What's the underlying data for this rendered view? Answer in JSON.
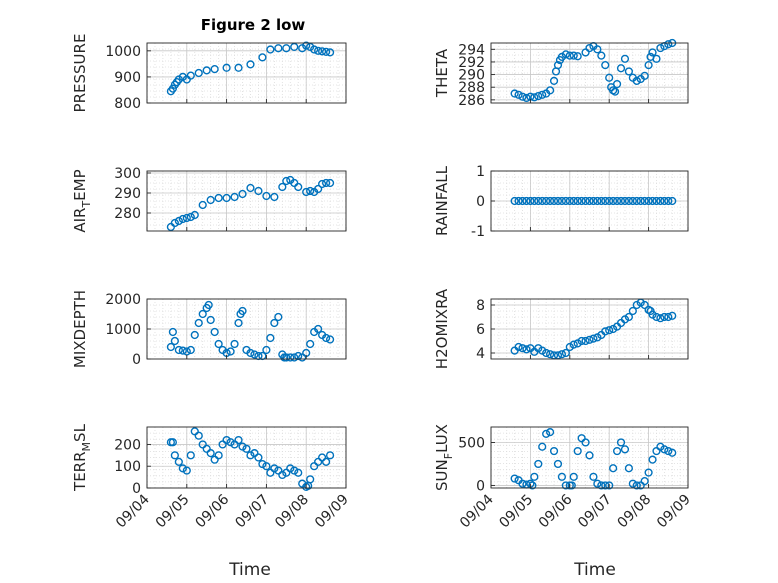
{
  "figure": {
    "title": "Figure 2 low",
    "xlabel": "Time",
    "x_ticks": [
      "09/04",
      "09/05",
      "09/06",
      "09/07",
      "09/08",
      "09/09"
    ],
    "marker_color": "#0072BD",
    "grid": "minor dotted"
  },
  "chart_data": [
    {
      "type": "scatter",
      "ylabel": "PRESSURE",
      "ylim": [
        800,
        1030
      ],
      "yticks": [
        "800",
        "900",
        "1000"
      ],
      "ytick_values": [
        800,
        900,
        1000
      ],
      "ylabel_parts": [],
      "x": [
        0.6,
        0.65,
        0.7,
        0.75,
        0.8,
        0.9,
        1.0,
        1.1,
        1.3,
        1.5,
        1.7,
        2.0,
        2.3,
        2.6,
        2.9,
        3.1,
        3.3,
        3.5,
        3.7,
        3.9,
        4.0,
        4.1,
        4.2,
        4.3,
        4.4,
        4.5,
        4.6
      ],
      "y": [
        845,
        855,
        870,
        880,
        890,
        900,
        890,
        905,
        915,
        925,
        930,
        935,
        935,
        948,
        975,
        1005,
        1010,
        1010,
        1015,
        1010,
        1020,
        1015,
        1005,
        1000,
        998,
        996,
        994
      ]
    },
    {
      "type": "scatter",
      "ylabel": "THETA",
      "ylim": [
        285.5,
        295
      ],
      "yticks": [
        "286",
        "288",
        "290",
        "292",
        "294"
      ],
      "ytick_values": [
        286,
        288,
        290,
        292,
        294
      ],
      "ylabel_parts": [],
      "x": [
        0.6,
        0.7,
        0.8,
        0.9,
        1.0,
        1.1,
        1.2,
        1.3,
        1.4,
        1.5,
        1.6,
        1.65,
        1.7,
        1.75,
        1.8,
        1.9,
        2.0,
        2.1,
        2.2,
        2.4,
        2.5,
        2.6,
        2.7,
        2.8,
        2.9,
        3.0,
        3.05,
        3.1,
        3.15,
        3.2,
        3.3,
        3.4,
        3.5,
        3.6,
        3.7,
        3.8,
        3.9,
        4.0,
        4.05,
        4.1,
        4.2,
        4.3,
        4.4,
        4.5,
        4.6
      ],
      "y": [
        287,
        286.8,
        286.5,
        286.3,
        286.5,
        286.4,
        286.6,
        286.8,
        287,
        287.5,
        289,
        290.5,
        291.5,
        292.3,
        292.8,
        293.2,
        293,
        293,
        292.9,
        293.5,
        294.2,
        294.5,
        294,
        293,
        291.5,
        289.5,
        288,
        287.5,
        287.3,
        288.5,
        291,
        292.5,
        290.5,
        289.5,
        289,
        289.3,
        289.8,
        291.5,
        292.8,
        293.5,
        292.5,
        294.2,
        294.5,
        294.8,
        295
      ]
    },
    {
      "type": "scatter",
      "ylabel": "AIR_TEMP",
      "ylabel_parts": [
        "AIR",
        "T",
        "EMP"
      ],
      "ylim": [
        271,
        301
      ],
      "yticks": [
        "280",
        "290",
        "300"
      ],
      "ytick_values": [
        280,
        290,
        300
      ],
      "x": [
        0.6,
        0.7,
        0.8,
        0.9,
        1.0,
        1.1,
        1.2,
        1.4,
        1.6,
        1.8,
        2.0,
        2.2,
        2.4,
        2.6,
        2.8,
        3.0,
        3.2,
        3.4,
        3.5,
        3.6,
        3.7,
        3.8,
        4.0,
        4.1,
        4.2,
        4.3,
        4.4,
        4.5,
        4.6
      ],
      "y": [
        273,
        275,
        276,
        277,
        277.5,
        278,
        279,
        284,
        286.5,
        287.5,
        287.5,
        288,
        289.5,
        292.5,
        291,
        288.5,
        288,
        293,
        296,
        296.5,
        295,
        293,
        290.5,
        291,
        290.5,
        292,
        294.5,
        295,
        295
      ]
    },
    {
      "type": "scatter",
      "ylabel": "RAINFALL",
      "ylim": [
        -1,
        1
      ],
      "yticks": [
        "-1",
        "0",
        "1"
      ],
      "ytick_values": [
        -1,
        0,
        1
      ],
      "ylabel_parts": [],
      "x": [
        0.6,
        0.7,
        0.8,
        0.9,
        1.0,
        1.1,
        1.2,
        1.3,
        1.4,
        1.5,
        1.6,
        1.7,
        1.8,
        1.9,
        2.0,
        2.1,
        2.2,
        2.3,
        2.4,
        2.5,
        2.6,
        2.7,
        2.8,
        2.9,
        3.0,
        3.1,
        3.2,
        3.3,
        3.4,
        3.5,
        3.6,
        3.7,
        3.8,
        3.9,
        4.0,
        4.1,
        4.2,
        4.3,
        4.4,
        4.5,
        4.6
      ],
      "y": [
        0,
        0,
        0,
        0,
        0,
        0,
        0,
        0,
        0,
        0,
        0,
        0,
        0,
        0,
        0,
        0,
        0,
        0,
        0,
        0,
        0,
        0,
        0,
        0,
        0,
        0,
        0,
        0,
        0,
        0,
        0,
        0,
        0,
        0,
        0,
        0,
        0,
        0,
        0,
        0,
        0
      ]
    },
    {
      "type": "scatter",
      "ylabel": "MIXDEPTH",
      "ylim": [
        0,
        2000
      ],
      "yticks": [
        "0",
        "1000",
        "2000"
      ],
      "ytick_values": [
        0,
        1000,
        2000
      ],
      "ylabel_parts": [],
      "x": [
        0.6,
        0.65,
        0.7,
        0.8,
        0.9,
        1.0,
        1.1,
        1.2,
        1.3,
        1.4,
        1.5,
        1.55,
        1.6,
        1.7,
        1.8,
        1.9,
        2.0,
        2.1,
        2.2,
        2.3,
        2.35,
        2.4,
        2.5,
        2.6,
        2.7,
        2.8,
        2.9,
        3.0,
        3.1,
        3.2,
        3.3,
        3.4,
        3.45,
        3.5,
        3.6,
        3.7,
        3.8,
        3.9,
        4.0,
        4.1,
        4.2,
        4.3,
        4.4,
        4.5,
        4.6
      ],
      "y": [
        400,
        900,
        600,
        300,
        280,
        250,
        300,
        800,
        1200,
        1500,
        1700,
        1800,
        1300,
        900,
        500,
        300,
        200,
        250,
        500,
        1200,
        1500,
        1600,
        300,
        200,
        150,
        100,
        100,
        300,
        700,
        1200,
        1400,
        150,
        50,
        50,
        50,
        50,
        100,
        50,
        200,
        500,
        900,
        1000,
        800,
        700,
        650
      ]
    },
    {
      "type": "scatter",
      "ylabel": "H2OMIXRA",
      "ylim": [
        3.5,
        8.5
      ],
      "yticks": [
        "4",
        "6",
        "8"
      ],
      "ytick_values": [
        4,
        6,
        8
      ],
      "ylabel_parts": [],
      "x": [
        0.6,
        0.7,
        0.8,
        0.9,
        1.0,
        1.1,
        1.2,
        1.3,
        1.4,
        1.5,
        1.6,
        1.7,
        1.8,
        1.9,
        2.0,
        2.1,
        2.2,
        2.3,
        2.4,
        2.5,
        2.6,
        2.7,
        2.8,
        2.9,
        3.0,
        3.1,
        3.2,
        3.3,
        3.4,
        3.5,
        3.6,
        3.7,
        3.8,
        3.9,
        4.0,
        4.05,
        4.1,
        4.2,
        4.3,
        4.4,
        4.5,
        4.6
      ],
      "y": [
        4.2,
        4.5,
        4.4,
        4.3,
        4.4,
        4.1,
        4.4,
        4.2,
        4.0,
        3.9,
        3.8,
        3.8,
        3.9,
        4.0,
        4.5,
        4.7,
        4.8,
        5.0,
        5.0,
        5.1,
        5.2,
        5.3,
        5.5,
        5.8,
        5.9,
        6.0,
        6.2,
        6.5,
        6.8,
        7.0,
        7.5,
        8.0,
        8.2,
        8.0,
        7.6,
        7.5,
        7.2,
        7.0,
        6.9,
        7.0,
        7.0,
        7.1
      ]
    },
    {
      "type": "scatter",
      "ylabel": "TERR_MSL",
      "ylabel_parts": [
        "TERR",
        "M",
        "SL"
      ],
      "ylim": [
        0,
        280
      ],
      "yticks": [
        "0",
        "100",
        "200"
      ],
      "ytick_values": [
        0,
        100,
        200
      ],
      "x": [
        0.6,
        0.65,
        0.7,
        0.8,
        0.9,
        1.0,
        1.1,
        1.2,
        1.3,
        1.4,
        1.5,
        1.6,
        1.7,
        1.8,
        1.9,
        2.0,
        2.1,
        2.2,
        2.3,
        2.4,
        2.5,
        2.6,
        2.7,
        2.8,
        2.9,
        3.0,
        3.1,
        3.2,
        3.3,
        3.4,
        3.5,
        3.6,
        3.7,
        3.8,
        3.9,
        4.0,
        4.05,
        4.1,
        4.2,
        4.3,
        4.4,
        4.5,
        4.6
      ],
      "y": [
        210,
        210,
        150,
        120,
        90,
        80,
        150,
        260,
        240,
        200,
        180,
        160,
        130,
        150,
        200,
        220,
        210,
        200,
        220,
        190,
        180,
        150,
        160,
        140,
        110,
        100,
        70,
        90,
        80,
        60,
        70,
        90,
        80,
        70,
        20,
        5,
        10,
        40,
        100,
        120,
        140,
        120,
        150
      ]
    },
    {
      "type": "scatter",
      "ylabel": "SUN_FLUX",
      "ylabel_parts": [
        "SUN",
        "F",
        "LUX"
      ],
      "ylim": [
        -30,
        680
      ],
      "yticks": [
        "0",
        "500"
      ],
      "ytick_values": [
        0,
        500
      ],
      "x": [
        0.6,
        0.7,
        0.8,
        0.9,
        1.0,
        1.05,
        1.1,
        1.2,
        1.3,
        1.4,
        1.5,
        1.6,
        1.7,
        1.8,
        1.9,
        2.0,
        2.05,
        2.1,
        2.2,
        2.3,
        2.4,
        2.5,
        2.6,
        2.7,
        2.8,
        2.9,
        3.0,
        3.1,
        3.2,
        3.3,
        3.4,
        3.5,
        3.6,
        3.7,
        3.8,
        3.9,
        4.0,
        4.1,
        4.2,
        4.3,
        4.4,
        4.5,
        4.6
      ],
      "y": [
        80,
        60,
        20,
        10,
        20,
        0,
        100,
        250,
        450,
        600,
        620,
        400,
        250,
        100,
        0,
        0,
        0,
        100,
        400,
        550,
        500,
        350,
        100,
        20,
        0,
        0,
        0,
        200,
        400,
        500,
        420,
        200,
        20,
        0,
        0,
        50,
        150,
        300,
        400,
        450,
        420,
        400,
        380
      ]
    }
  ]
}
